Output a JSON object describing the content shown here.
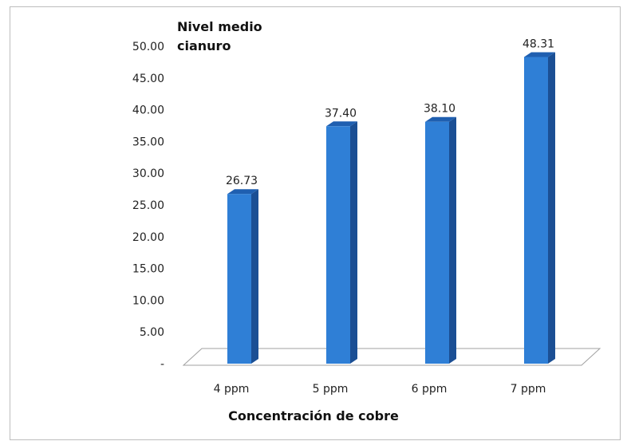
{
  "chart_data": {
    "type": "bar",
    "title": "",
    "ylabel": "Nivel medio\ncianuro",
    "xlabel": "Concentración de cobre",
    "categories": [
      "4 ppm",
      "5 ppm",
      "6 ppm",
      "7 ppm"
    ],
    "values": [
      26.73,
      37.4,
      38.1,
      48.31
    ],
    "value_labels": [
      "26.73",
      "37.40",
      "38.10",
      "48.31"
    ],
    "y_tick_labels": [
      "-",
      "5.00",
      "10.00",
      "15.00",
      "20.00",
      "25.00",
      "30.00",
      "35.00",
      "40.00",
      "45.00",
      "50.00"
    ],
    "ylim": [
      0,
      50
    ],
    "grid": false,
    "legend": "none",
    "bar_color": "#2f7fd6",
    "bar_side_color": "#1b4f94",
    "bar_top_color": "#1f5fb0"
  }
}
